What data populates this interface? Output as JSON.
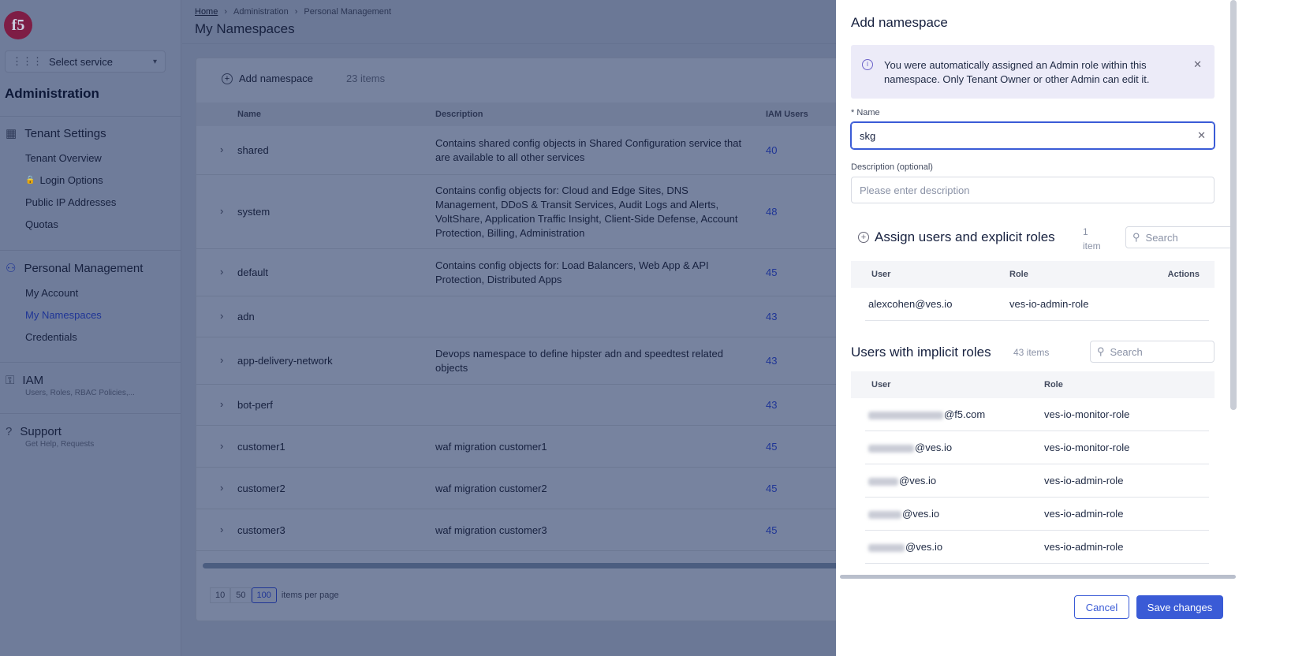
{
  "sidebar": {
    "logo": "f5",
    "service_select": "Select service",
    "heading": "Administration",
    "tenant_settings": {
      "label": "Tenant Settings",
      "items": [
        "Tenant Overview",
        "Login Options",
        "Public IP Addresses",
        "Quotas"
      ]
    },
    "personal": {
      "label": "Personal Management",
      "items": [
        "My Account",
        "My Namespaces",
        "Credentials"
      ],
      "active": "My Namespaces"
    },
    "iam": {
      "label": "IAM",
      "sub": "Users, Roles, RBAC Policies,..."
    },
    "support": {
      "label": "Support",
      "sub": "Get Help, Requests"
    }
  },
  "breadcrumb": [
    "Home",
    "Administration",
    "Personal Management"
  ],
  "page_title": "My Namespaces",
  "toolbar": {
    "add_label": "Add namespace",
    "count": "23 items"
  },
  "table": {
    "columns": [
      "Name",
      "Description",
      "IAM Users"
    ],
    "rows": [
      {
        "name": "shared",
        "description": "Contains shared config objects in Shared Configuration service that are available to all other services",
        "iam": "40"
      },
      {
        "name": "system",
        "description": "Contains config objects for: Cloud and Edge Sites, DNS Management, DDoS & Transit Services, Audit Logs and Alerts, VoltShare, Application Traffic Insight, Client-Side Defense, Account Protection, Billing, Administration",
        "iam": "48"
      },
      {
        "name": "default",
        "description": "Contains config objects for: Load Balancers, Web App & API Protection, Distributed Apps",
        "iam": "45"
      },
      {
        "name": "adn",
        "description": "",
        "iam": "43"
      },
      {
        "name": "app-delivery-network",
        "description": "Devops namespace to define hipster adn and speedtest related objects",
        "iam": "43"
      },
      {
        "name": "bot-perf",
        "description": "",
        "iam": "43"
      },
      {
        "name": "customer1",
        "description": "waf migration customer1",
        "iam": "45"
      },
      {
        "name": "customer2",
        "description": "waf migration customer2",
        "iam": "45"
      },
      {
        "name": "customer3",
        "description": "waf migration customer3",
        "iam": "45"
      }
    ]
  },
  "pagination": {
    "options": [
      "10",
      "50",
      "100"
    ],
    "selected": "100",
    "label": "items per page"
  },
  "drawer": {
    "title": "Add namespace",
    "info": "You were automatically assigned an Admin role within this namespace. Only Tenant Owner or other Admin can edit it.",
    "name_label": "* Name",
    "name_value": "skg",
    "description_label": "Description (optional)",
    "description_placeholder": "Please enter description",
    "explicit": {
      "title": "Assign users and explicit roles",
      "count": "1 item",
      "search_placeholder": "Search",
      "columns": [
        "User",
        "Role",
        "Actions"
      ],
      "rows": [
        {
          "user": "alexcohen@ves.io",
          "role": "ves-io-admin-role"
        }
      ]
    },
    "implicit": {
      "title": "Users with implicit roles",
      "count": "43 items",
      "search_placeholder": "Search",
      "columns": [
        "User",
        "Role"
      ],
      "rows": [
        {
          "user": "@f5.com",
          "role": "ves-io-monitor-role"
        },
        {
          "user": "@ves.io",
          "role": "ves-io-monitor-role"
        },
        {
          "user": "@ves.io",
          "role": "ves-io-admin-role"
        },
        {
          "user": "@ves.io",
          "role": "ves-io-admin-role"
        },
        {
          "user": "@ves.io",
          "role": "ves-io-admin-role"
        }
      ]
    },
    "cancel": "Cancel",
    "save": "Save changes"
  },
  "colors": {
    "accent": "#3a5bd6",
    "brand": "#c4163b",
    "info_bg": "#ecebf8"
  }
}
